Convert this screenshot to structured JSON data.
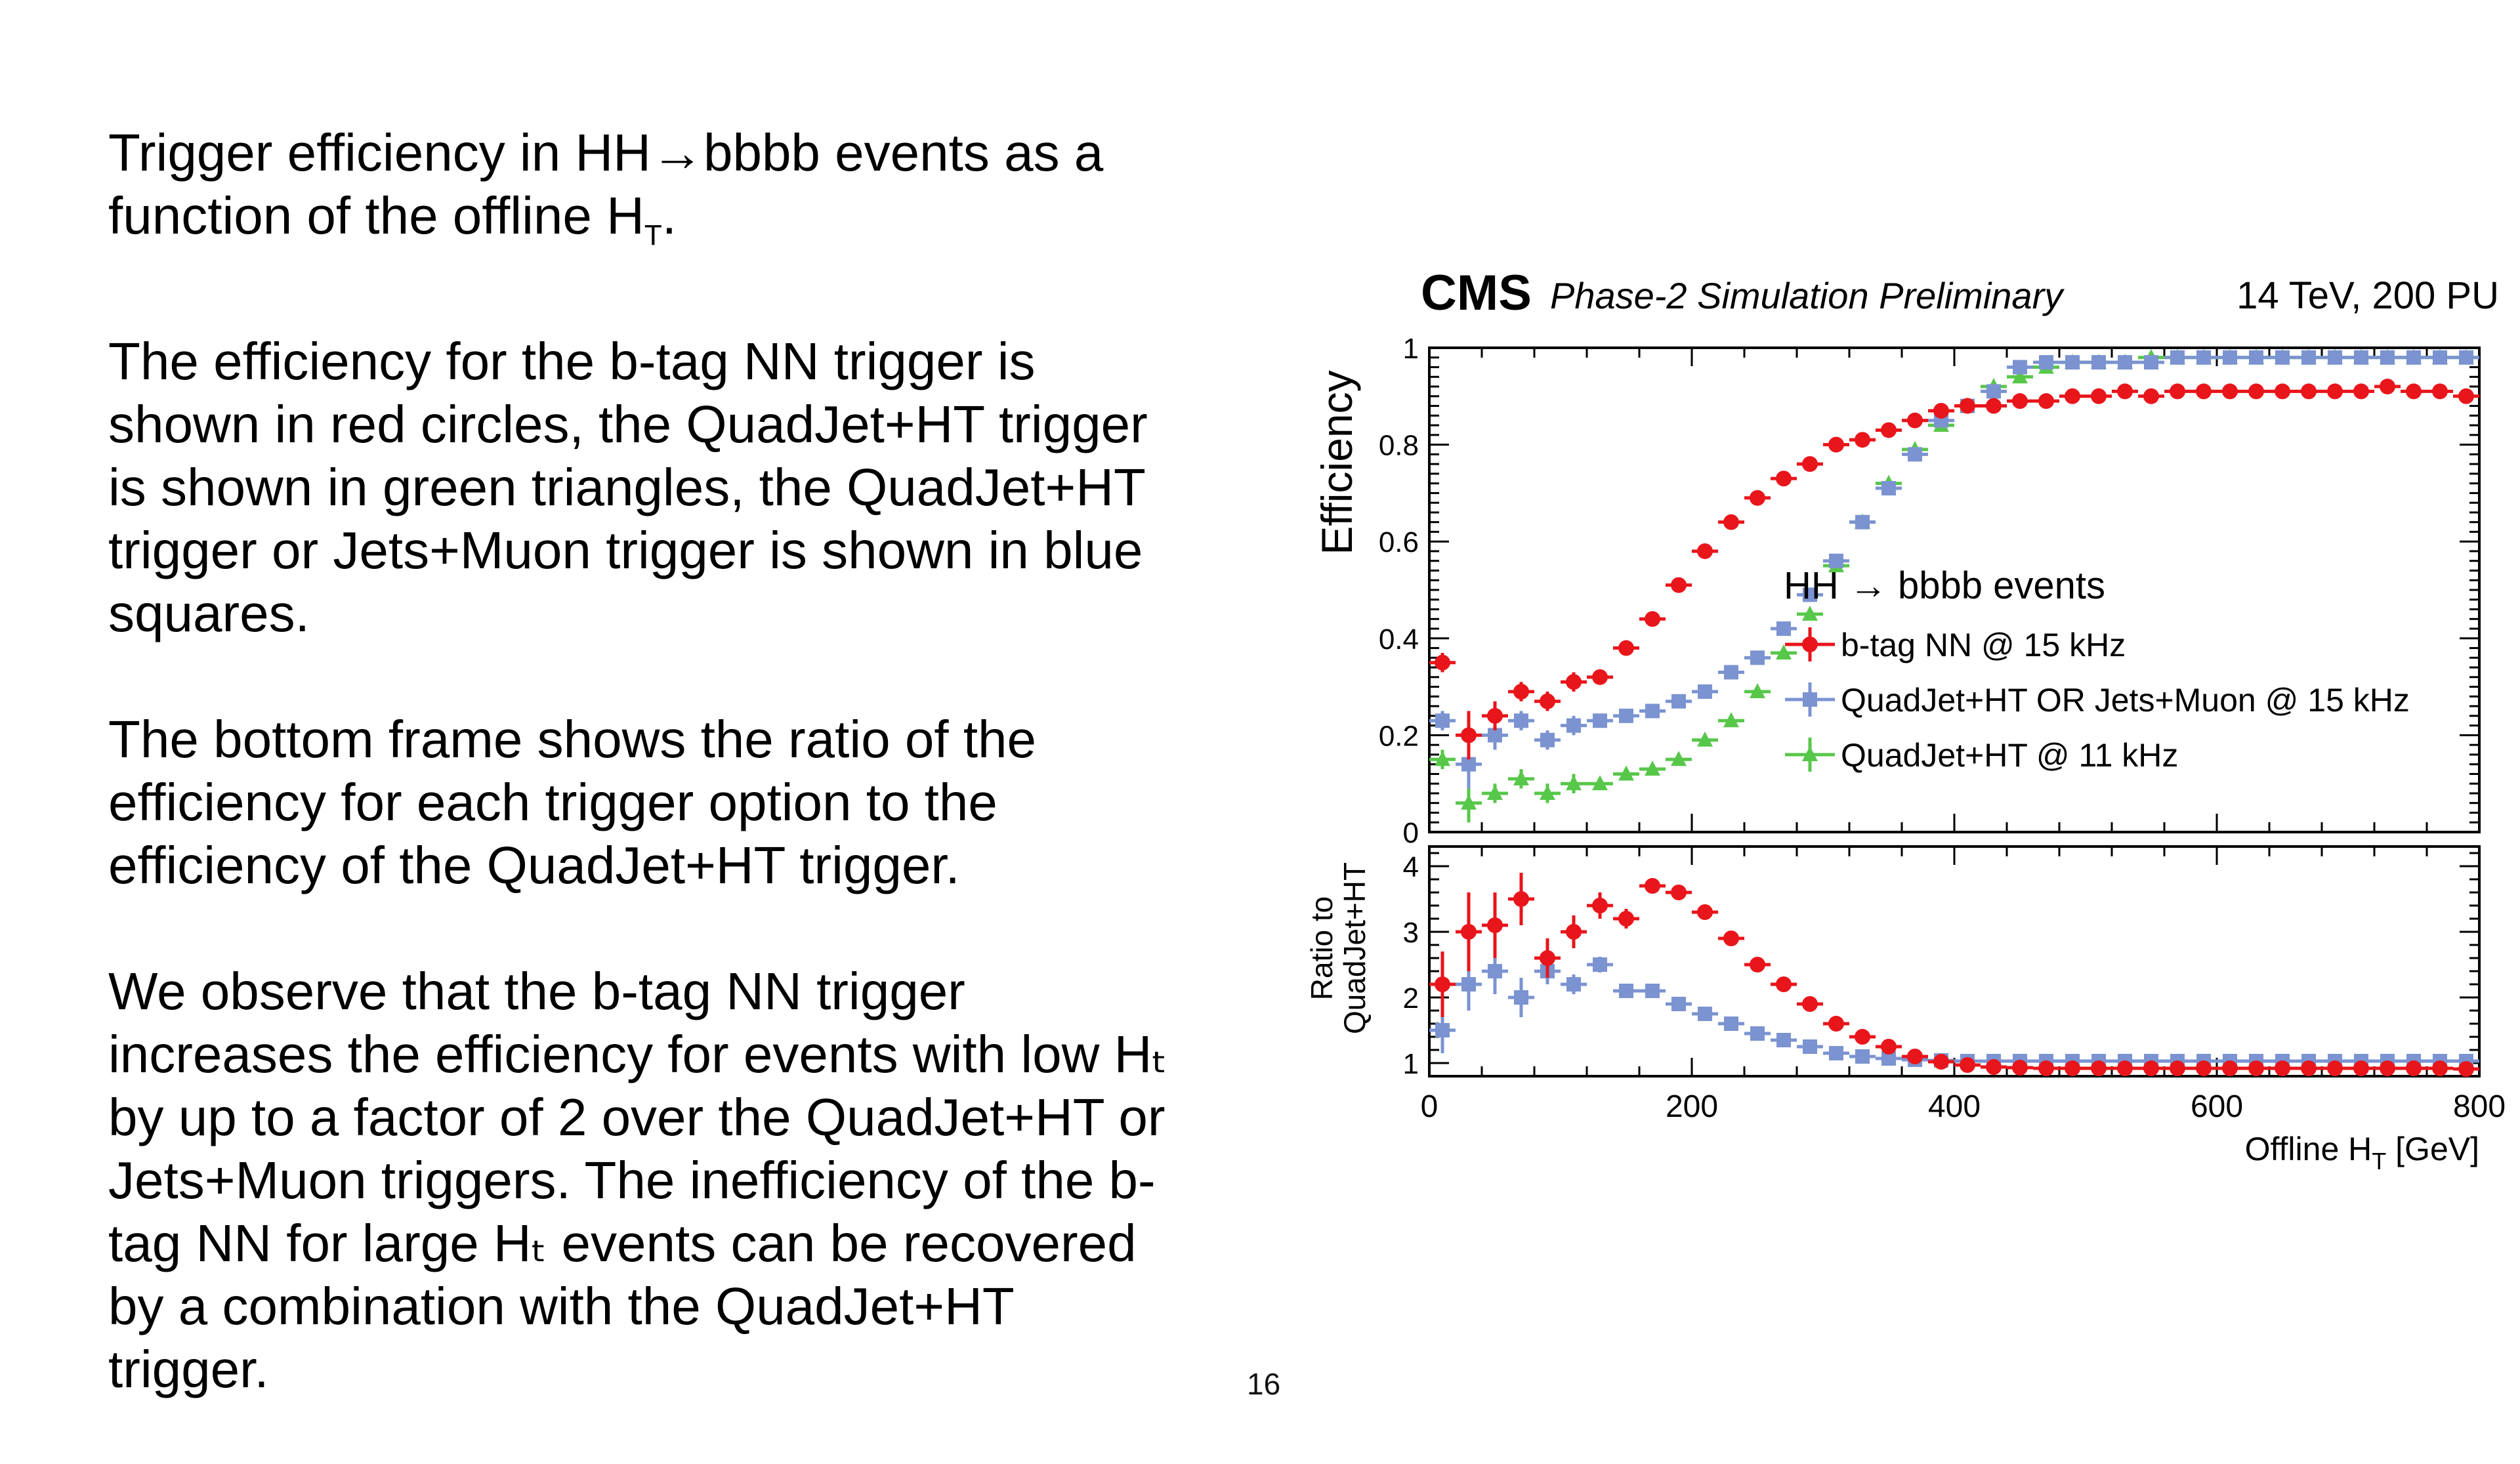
{
  "slide": {
    "paragraphs": [
      "Trigger efficiency in HH→bbbb events as a function of the offline Hₜ.",
      "The efficiency for the b-tag NN trigger is shown in red circles, the QuadJet+HT trigger is shown in green triangles, the QuadJet+HT trigger or Jets+Muon trigger is shown in blue squares.",
      "The bottom frame shows the ratio of the efficiency for each trigger option to the efficiency of the QuadJet+HT trigger.",
      "We observe that the b-tag NN trigger increases the efficiency for events with low Hₜ by up to a factor of 2 over the QuadJet+HT or Jets+Muon triggers. The inefficiency of the b-tag NN for large Hₜ events can be recovered by a combination with the QuadJet+HT trigger."
    ],
    "page_number": "16"
  },
  "chart_data": {
    "type": "scatter",
    "header": {
      "experiment": "CMS",
      "status": "Phase-2 Simulation Preliminary",
      "conditions": "14 TeV, 200 PU"
    },
    "legend_title": "HH → bbbb events",
    "legend_position": "middle-right",
    "colors": {
      "btag": "#e8151b",
      "or": "#7b93d0",
      "quad": "#57c74a"
    },
    "xlabel": "Offline H_T [GeV]",
    "xlim": [
      0,
      800
    ],
    "x_ticks": [
      "0",
      "200",
      "400",
      "600",
      "800"
    ],
    "top_panel": {
      "ylabel": "Efficiency",
      "ylim": [
        0,
        1
      ],
      "y_ticks": [
        "0",
        "0.2",
        "0.4",
        "0.6",
        "0.8",
        "1"
      ]
    },
    "bottom_panel": {
      "ylabel_lines": [
        "Ratio to",
        "QuadJet+HT"
      ],
      "ylim": [
        0.8,
        4.3
      ],
      "y_ticks": [
        "1",
        "2",
        "3",
        "4"
      ]
    },
    "x": [
      10,
      30,
      50,
      70,
      90,
      110,
      130,
      150,
      170,
      190,
      210,
      230,
      250,
      270,
      290,
      310,
      330,
      350,
      370,
      390,
      410,
      430,
      450,
      470,
      490,
      510,
      530,
      550,
      570,
      590,
      610,
      630,
      650,
      670,
      690,
      710,
      730,
      750,
      770,
      790
    ],
    "series": [
      {
        "name": "b-tag NN @ 15 kHz",
        "marker": "circle",
        "color_key": "btag",
        "efficiency": [
          0.35,
          0.2,
          0.24,
          0.29,
          0.27,
          0.31,
          0.32,
          0.38,
          0.44,
          0.51,
          0.58,
          0.64,
          0.69,
          0.73,
          0.76,
          0.8,
          0.81,
          0.83,
          0.85,
          0.87,
          0.88,
          0.88,
          0.89,
          0.89,
          0.9,
          0.9,
          0.91,
          0.9,
          0.91,
          0.91,
          0.91,
          0.91,
          0.91,
          0.91,
          0.91,
          0.91,
          0.92,
          0.91,
          0.91,
          0.9
        ],
        "eff_err": [
          0.02,
          0.05,
          0.03,
          0.02,
          0.02,
          0.02,
          0.01,
          0.01,
          0.01,
          0.01,
          0.01,
          0.01,
          0.01,
          0.01,
          0.01,
          0.01,
          0.01,
          0.01,
          0.01,
          0.01,
          0.01,
          0.01,
          0.01,
          0.01,
          0.01,
          0.01,
          0.01,
          0.01,
          0.01,
          0.01,
          0.01,
          0.01,
          0.01,
          0.01,
          0.01,
          0.01,
          0.01,
          0.01,
          0.01,
          0.01
        ],
        "ratio": [
          2.2,
          3.0,
          3.1,
          3.5,
          2.6,
          3.0,
          3.4,
          3.2,
          3.7,
          3.6,
          3.3,
          2.9,
          2.5,
          2.2,
          1.9,
          1.6,
          1.4,
          1.25,
          1.1,
          1.02,
          0.97,
          0.94,
          0.93,
          0.92,
          0.92,
          0.92,
          0.92,
          0.92,
          0.92,
          0.92,
          0.92,
          0.92,
          0.92,
          0.92,
          0.92,
          0.92,
          0.92,
          0.92,
          0.92,
          0.91
        ],
        "ratio_err": [
          0.5,
          0.6,
          0.5,
          0.4,
          0.3,
          0.25,
          0.2,
          0.15,
          0.1,
          0.08,
          0.07,
          0.06,
          0.05,
          0.04,
          0.03,
          0.03,
          0.02,
          0.02,
          0.02,
          0.01,
          0.01,
          0.01,
          0.01,
          0.01,
          0.01,
          0.01,
          0.01,
          0.01,
          0.01,
          0.01,
          0.01,
          0.01,
          0.01,
          0.01,
          0.01,
          0.01,
          0.01,
          0.01,
          0.01,
          0.01
        ]
      },
      {
        "name": "QuadJet+HT OR Jets+Muon @ 15 kHz",
        "marker": "square",
        "color_key": "or",
        "efficiency": [
          0.23,
          0.14,
          0.2,
          0.23,
          0.19,
          0.22,
          0.23,
          0.24,
          0.25,
          0.27,
          0.29,
          0.33,
          0.36,
          0.42,
          0.49,
          0.56,
          0.64,
          0.71,
          0.78,
          0.85,
          0.88,
          0.91,
          0.96,
          0.97,
          0.97,
          0.97,
          0.97,
          0.97,
          0.98,
          0.98,
          0.98,
          0.98,
          0.98,
          0.98,
          0.98,
          0.98,
          0.98,
          0.98,
          0.98,
          0.98
        ],
        "eff_err": [
          0.02,
          0.05,
          0.03,
          0.02,
          0.02,
          0.02,
          0.01,
          0.01,
          0.01,
          0.01,
          0.01,
          0.01,
          0.01,
          0.01,
          0.01,
          0.01,
          0.01,
          0.01,
          0.01,
          0.01,
          0.01,
          0.01,
          0.01,
          0.01,
          0.01,
          0.01,
          0.01,
          0.01,
          0.01,
          0.01,
          0.01,
          0.01,
          0.01,
          0.01,
          0.01,
          0.01,
          0.01,
          0.01,
          0.01,
          0.01
        ],
        "ratio": [
          1.5,
          2.2,
          2.4,
          2.0,
          2.4,
          2.2,
          2.5,
          2.1,
          2.1,
          1.9,
          1.75,
          1.6,
          1.45,
          1.35,
          1.25,
          1.15,
          1.1,
          1.07,
          1.05,
          1.04,
          1.03,
          1.03,
          1.03,
          1.03,
          1.03,
          1.03,
          1.03,
          1.03,
          1.03,
          1.03,
          1.03,
          1.03,
          1.03,
          1.03,
          1.03,
          1.03,
          1.03,
          1.03,
          1.03,
          1.03
        ],
        "ratio_err": [
          0.35,
          0.4,
          0.35,
          0.3,
          0.2,
          0.15,
          0.12,
          0.1,
          0.07,
          0.05,
          0.04,
          0.04,
          0.03,
          0.03,
          0.02,
          0.02,
          0.02,
          0.01,
          0.01,
          0.01,
          0.01,
          0.01,
          0.01,
          0.01,
          0.01,
          0.01,
          0.01,
          0.01,
          0.01,
          0.01,
          0.01,
          0.01,
          0.01,
          0.01,
          0.01,
          0.01,
          0.01,
          0.01,
          0.01,
          0.01
        ]
      },
      {
        "name": "QuadJet+HT @ 11 kHz",
        "marker": "triangle",
        "color_key": "quad",
        "efficiency": [
          0.15,
          0.06,
          0.08,
          0.11,
          0.08,
          0.1,
          0.1,
          0.12,
          0.13,
          0.15,
          0.19,
          0.23,
          0.29,
          0.37,
          0.45,
          0.55,
          0.64,
          0.72,
          0.79,
          0.84,
          0.88,
          0.92,
          0.94,
          0.96,
          0.97,
          0.97,
          0.97,
          0.98,
          0.98,
          0.98,
          0.98,
          0.98,
          0.98,
          0.98,
          0.98,
          0.98,
          0.98,
          0.98,
          0.98,
          0.98
        ],
        "eff_err": [
          0.02,
          0.04,
          0.02,
          0.02,
          0.02,
          0.02,
          0.01,
          0.01,
          0.01,
          0.01,
          0.01,
          0.01,
          0.01,
          0.01,
          0.01,
          0.01,
          0.01,
          0.01,
          0.01,
          0.01,
          0.01,
          0.01,
          0.01,
          0.01,
          0.01,
          0.01,
          0.01,
          0.01,
          0.01,
          0.01,
          0.01,
          0.01,
          0.01,
          0.01,
          0.01,
          0.01,
          0.01,
          0.01,
          0.01,
          0.01
        ]
      }
    ]
  }
}
